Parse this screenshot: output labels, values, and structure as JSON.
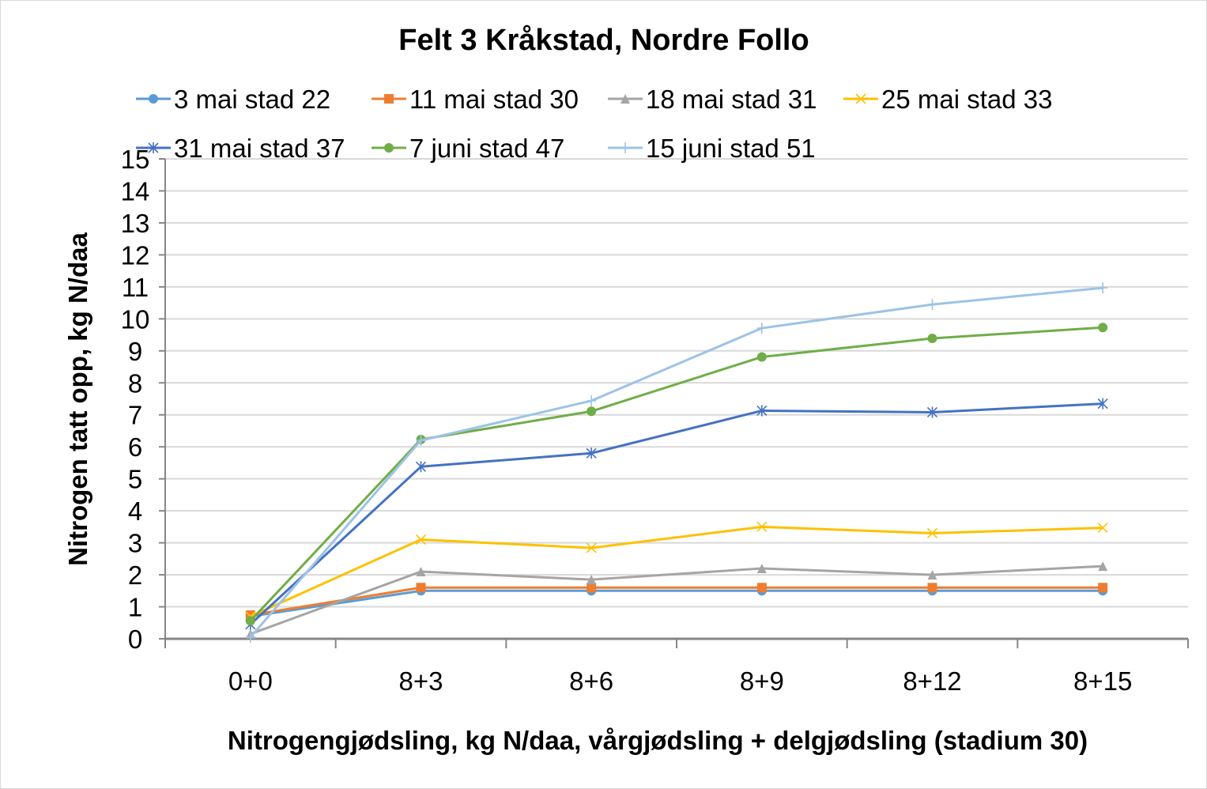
{
  "chart_data": {
    "type": "line",
    "title": "Felt 3 Kråkstad, Nordre Follo",
    "xlabel": "Nitrogengjødsling, kg N/daa, vårgjødsling + delgjødsling (stadium 30)",
    "ylabel": "Nitrogen tatt opp, kg N/daa",
    "categories": [
      "0+0",
      "8+3",
      "8+6",
      "8+9",
      "8+12",
      "8+15"
    ],
    "ylim": [
      0,
      15
    ],
    "yticks": [
      0,
      1,
      2,
      3,
      4,
      5,
      6,
      7,
      8,
      9,
      10,
      11,
      12,
      13,
      14,
      15
    ],
    "grid": true,
    "legend_position": "top",
    "series": [
      {
        "name": "3 mai stad 22",
        "color": "#5b9bd5",
        "marker": "circle",
        "values": [
          0.7,
          1.5,
          1.5,
          1.5,
          1.5,
          1.5
        ]
      },
      {
        "name": "11 mai stad 30",
        "color": "#ed7d31",
        "marker": "square",
        "values": [
          0.74,
          1.6,
          1.6,
          1.6,
          1.6,
          1.6
        ]
      },
      {
        "name": "18 mai stad 31",
        "color": "#a5a5a5",
        "marker": "triangle",
        "values": [
          0.15,
          2.1,
          1.85,
          2.2,
          2.0,
          2.27
        ]
      },
      {
        "name": "25 mai stad 33",
        "color": "#ffc000",
        "marker": "x",
        "values": [
          0.7,
          3.1,
          2.84,
          3.5,
          3.3,
          3.47
        ]
      },
      {
        "name": "31 mai stad 37",
        "color": "#4472c4",
        "marker": "star",
        "values": [
          0.45,
          5.38,
          5.8,
          7.13,
          7.08,
          7.35
        ]
      },
      {
        "name": "7 juni stad 47",
        "color": "#70ad47",
        "marker": "circle",
        "values": [
          0.56,
          6.23,
          7.11,
          8.81,
          9.39,
          9.73
        ]
      },
      {
        "name": "15 juni stad 51",
        "color": "#9dc3e6",
        "marker": "plus",
        "values": [
          0.05,
          6.2,
          7.44,
          9.71,
          10.45,
          10.97
        ]
      }
    ]
  }
}
